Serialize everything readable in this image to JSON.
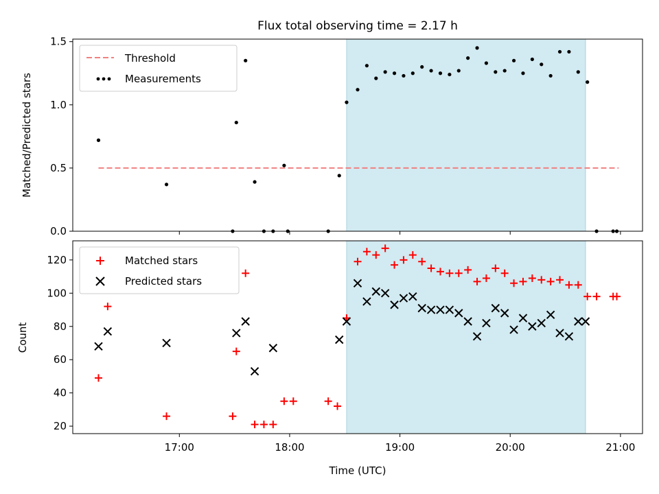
{
  "title": "Flux total observing time = 2.17 h",
  "colors": {
    "threshold": "#f08080",
    "measurement": "#000000",
    "matched": "#ff0000",
    "predicted": "#000000",
    "span": "#add8e6"
  },
  "chart_data": [
    {
      "type": "scatter",
      "panel": "top",
      "ylabel": "Matched/Predicted stars",
      "ylim": [
        0,
        1.52
      ],
      "yticks": [
        "0.0",
        "0.5",
        "1.0",
        "1.5"
      ],
      "xlim": [
        "16:02",
        "21:12"
      ],
      "x_tick_labels_shown": false,
      "shaded_interval": [
        "18:31",
        "20:41"
      ],
      "legend": {
        "position": "upper-left",
        "entries": [
          "Threshold",
          "Measurements"
        ]
      },
      "series": [
        {
          "name": "Threshold",
          "kind": "line",
          "style": "dashed",
          "x": [
            "16:16",
            "20:59"
          ],
          "y": [
            0.5,
            0.5
          ]
        },
        {
          "name": "Measurements",
          "kind": "points",
          "x": [
            "16:16",
            "16:53",
            "17:29",
            "17:31",
            "17:36",
            "17:41",
            "17:46",
            "17:51",
            "17:57",
            "17:59",
            "18:21",
            "18:27",
            "18:31",
            "18:37",
            "18:42",
            "18:47",
            "18:52",
            "18:57",
            "19:02",
            "19:07",
            "19:12",
            "19:17",
            "19:22",
            "19:27",
            "19:32",
            "19:37",
            "19:42",
            "19:47",
            "19:52",
            "19:57",
            "20:02",
            "20:07",
            "20:12",
            "20:17",
            "20:22",
            "20:27",
            "20:32",
            "20:37",
            "20:42",
            "20:47",
            "20:56",
            "20:58"
          ],
          "y": [
            0.72,
            0.37,
            0.0,
            0.86,
            1.35,
            0.39,
            0.0,
            0.0,
            0.52,
            0.0,
            0.0,
            0.44,
            1.02,
            1.12,
            1.31,
            1.21,
            1.26,
            1.25,
            1.23,
            1.25,
            1.3,
            1.27,
            1.25,
            1.24,
            1.27,
            1.37,
            1.45,
            1.33,
            1.26,
            1.27,
            1.35,
            1.25,
            1.36,
            1.32,
            1.23,
            1.42,
            1.42,
            1.26,
            1.18,
            0.0,
            0.0,
            0.0
          ]
        }
      ]
    },
    {
      "type": "scatter",
      "panel": "bottom",
      "ylabel": "Count",
      "xlabel": "Time (UTC)",
      "ylim": [
        15.5,
        131.5
      ],
      "yticks": [
        "20",
        "40",
        "60",
        "80",
        "100",
        "120"
      ],
      "xlim": [
        "16:02",
        "21:12"
      ],
      "xticks": [
        "17:00",
        "18:00",
        "19:00",
        "20:00",
        "21:00"
      ],
      "shaded_interval": [
        "18:31",
        "20:41"
      ],
      "legend": {
        "position": "upper-left",
        "entries": [
          "Matched stars",
          "Predicted stars"
        ]
      },
      "series": [
        {
          "name": "Matched stars",
          "marker": "plus",
          "x": [
            "16:16",
            "16:21",
            "16:53",
            "17:29",
            "17:31",
            "17:36",
            "17:41",
            "17:46",
            "17:51",
            "17:57",
            "18:02",
            "18:21",
            "18:26",
            "18:31",
            "18:37",
            "18:42",
            "18:47",
            "18:52",
            "18:57",
            "19:02",
            "19:07",
            "19:12",
            "19:17",
            "19:22",
            "19:27",
            "19:32",
            "19:37",
            "19:42",
            "19:47",
            "19:52",
            "19:57",
            "20:02",
            "20:07",
            "20:12",
            "20:17",
            "20:22",
            "20:27",
            "20:32",
            "20:37",
            "20:42",
            "20:47",
            "20:56",
            "20:58"
          ],
          "y": [
            49,
            92,
            26,
            26,
            65,
            112,
            21,
            21,
            21,
            35,
            35,
            35,
            32,
            85,
            119,
            125,
            123,
            127,
            117,
            120,
            123,
            119,
            115,
            113,
            112,
            112,
            114,
            107,
            109,
            115,
            112,
            106,
            107,
            109,
            108,
            107,
            108,
            105,
            105,
            98,
            98,
            98,
            98
          ]
        },
        {
          "name": "Predicted stars",
          "marker": "x",
          "x": [
            "16:16",
            "16:21",
            "16:53",
            "17:31",
            "17:36",
            "17:41",
            "17:51",
            "18:27",
            "18:31",
            "18:37",
            "18:42",
            "18:47",
            "18:52",
            "18:57",
            "19:02",
            "19:07",
            "19:12",
            "19:17",
            "19:22",
            "19:27",
            "19:32",
            "19:37",
            "19:42",
            "19:47",
            "19:52",
            "19:57",
            "20:02",
            "20:07",
            "20:12",
            "20:17",
            "20:22",
            "20:27",
            "20:32",
            "20:37",
            "20:41"
          ],
          "y": [
            68,
            77,
            70,
            76,
            83,
            53,
            67,
            72,
            83,
            106,
            95,
            101,
            100,
            93,
            97,
            98,
            91,
            90,
            90,
            90,
            88,
            83,
            74,
            82,
            91,
            88,
            78,
            85,
            80,
            82,
            87,
            76,
            74,
            83,
            83
          ]
        }
      ]
    }
  ]
}
